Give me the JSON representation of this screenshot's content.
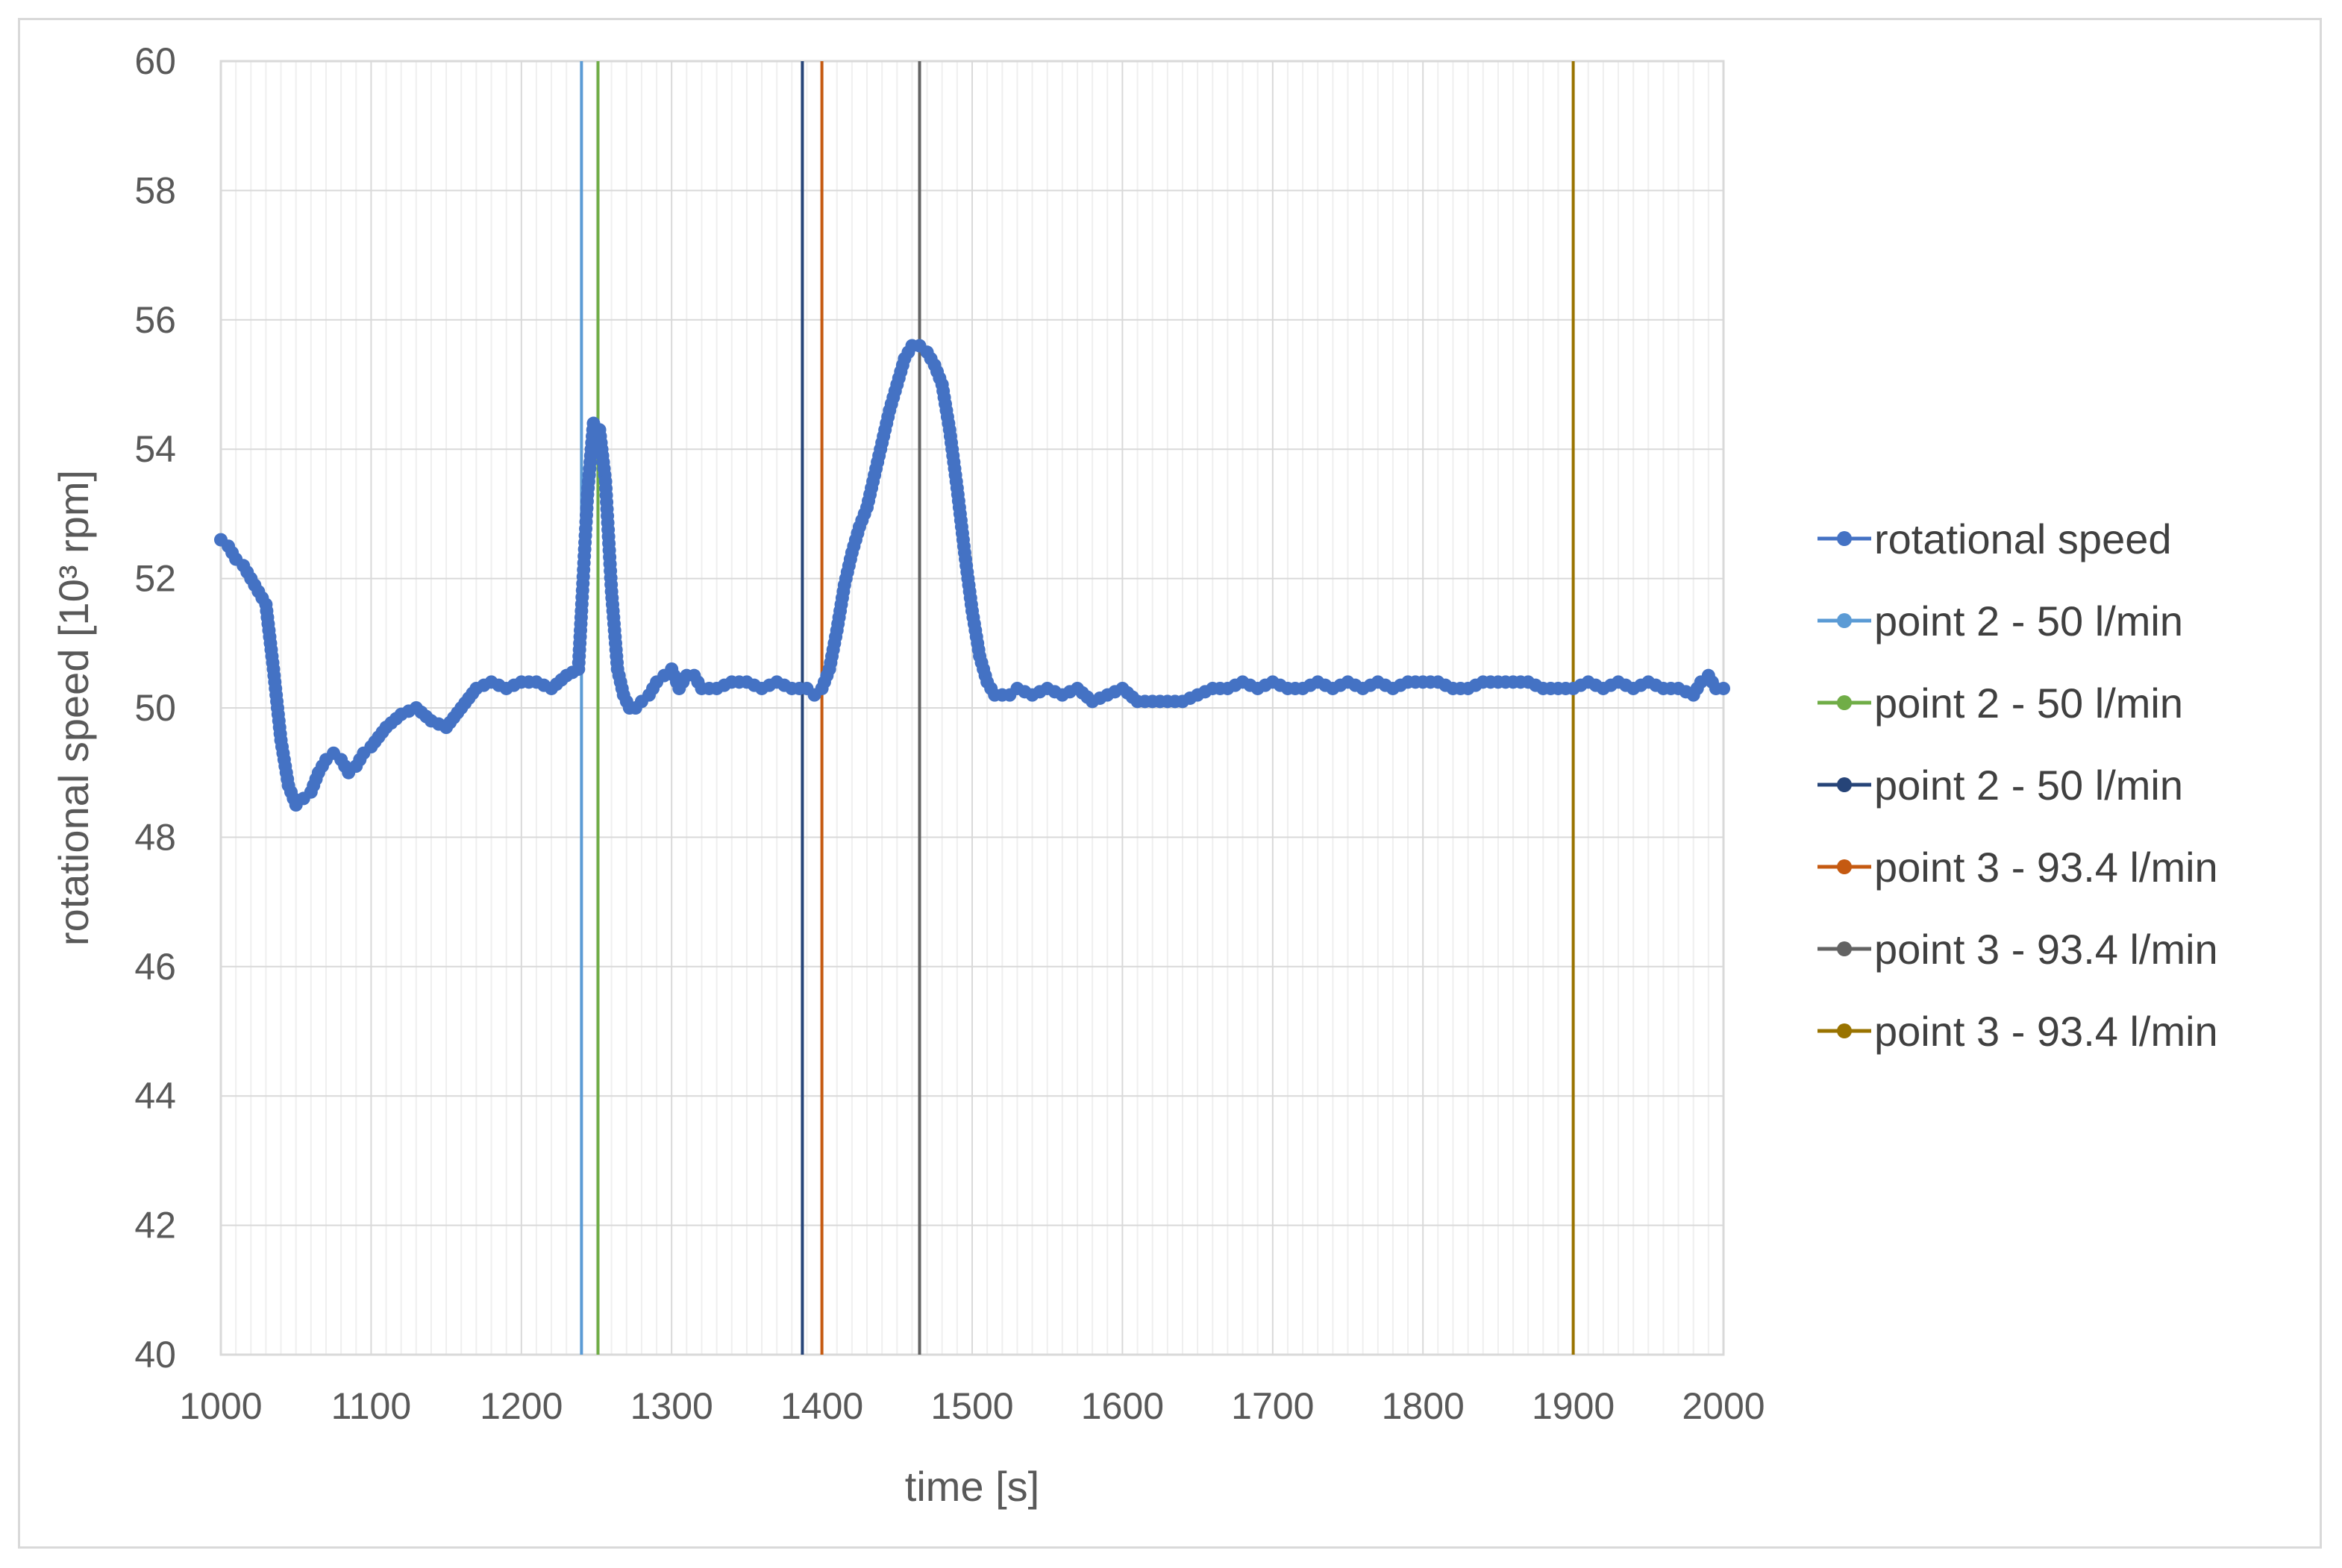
{
  "chart_data": {
    "type": "line",
    "title": "",
    "xlabel": "time [s]",
    "ylabel": "rotational speed [10³ rpm]",
    "xlim": [
      1000,
      2000
    ],
    "ylim": [
      40,
      60
    ],
    "x_ticks": [
      1000,
      1100,
      1200,
      1300,
      1400,
      1500,
      1600,
      1700,
      1800,
      1900,
      2000
    ],
    "y_ticks": [
      40,
      42,
      44,
      46,
      48,
      50,
      52,
      54,
      56,
      58,
      60
    ],
    "grid": true,
    "legend_position": "right",
    "series": [
      {
        "name": "rotational speed",
        "color": "#4472c4",
        "marker": "circle",
        "x": [
          1000,
          1005,
          1010,
          1015,
          1020,
          1025,
          1030,
          1035,
          1040,
          1045,
          1050,
          1055,
          1060,
          1065,
          1070,
          1075,
          1080,
          1085,
          1090,
          1095,
          1100,
          1110,
          1120,
          1130,
          1140,
          1150,
          1160,
          1170,
          1180,
          1190,
          1200,
          1210,
          1220,
          1230,
          1238,
          1240,
          1244,
          1248,
          1252,
          1256,
          1260,
          1264,
          1268,
          1272,
          1276,
          1280,
          1285,
          1290,
          1295,
          1300,
          1305,
          1310,
          1315,
          1320,
          1330,
          1340,
          1350,
          1360,
          1370,
          1380,
          1390,
          1395,
          1400,
          1405,
          1410,
          1415,
          1420,
          1425,
          1430,
          1435,
          1440,
          1445,
          1450,
          1455,
          1460,
          1465,
          1470,
          1475,
          1480,
          1485,
          1490,
          1495,
          1500,
          1505,
          1510,
          1515,
          1520,
          1525,
          1530,
          1540,
          1550,
          1560,
          1570,
          1580,
          1590,
          1600,
          1610,
          1620,
          1630,
          1640,
          1650,
          1660,
          1670,
          1680,
          1690,
          1700,
          1710,
          1720,
          1730,
          1740,
          1750,
          1760,
          1770,
          1780,
          1790,
          1800,
          1810,
          1820,
          1830,
          1840,
          1850,
          1860,
          1870,
          1880,
          1890,
          1900,
          1910,
          1920,
          1930,
          1940,
          1950,
          1960,
          1970,
          1980,
          1985,
          1990,
          1995,
          2000
        ],
        "y": [
          52.6,
          52.5,
          52.3,
          52.2,
          52.0,
          51.8,
          51.6,
          50.6,
          49.5,
          48.8,
          48.5,
          48.6,
          48.7,
          49.0,
          49.2,
          49.3,
          49.2,
          49.0,
          49.1,
          49.3,
          49.4,
          49.7,
          49.9,
          50.0,
          49.8,
          49.7,
          50.0,
          50.3,
          50.4,
          50.3,
          50.4,
          50.4,
          50.3,
          50.5,
          50.6,
          51.5,
          53.3,
          54.4,
          54.3,
          53.5,
          51.8,
          50.6,
          50.2,
          50.0,
          50.0,
          50.1,
          50.2,
          50.4,
          50.5,
          50.6,
          50.3,
          50.5,
          50.5,
          50.3,
          50.3,
          50.4,
          50.4,
          50.3,
          50.4,
          50.3,
          50.3,
          50.2,
          50.3,
          50.6,
          51.2,
          51.9,
          52.4,
          52.8,
          53.1,
          53.6,
          54.1,
          54.6,
          55.0,
          55.4,
          55.6,
          55.6,
          55.5,
          55.3,
          55.0,
          54.3,
          53.4,
          52.4,
          51.5,
          50.8,
          50.4,
          50.2,
          50.2,
          50.2,
          50.3,
          50.2,
          50.3,
          50.2,
          50.3,
          50.1,
          50.2,
          50.3,
          50.1,
          50.1,
          50.1,
          50.1,
          50.2,
          50.3,
          50.3,
          50.4,
          50.3,
          50.4,
          50.3,
          50.3,
          50.4,
          50.3,
          50.4,
          50.3,
          50.4,
          50.3,
          50.4,
          50.4,
          50.4,
          50.3,
          50.3,
          50.4,
          50.4,
          50.4,
          50.4,
          50.3,
          50.3,
          50.3,
          50.4,
          50.3,
          50.4,
          50.3,
          50.4,
          50.3,
          50.3,
          50.2,
          50.4,
          50.5,
          50.3,
          50.3
        ]
      },
      {
        "name": "point 2 - 50 l/min",
        "color": "#5b9bd5",
        "x": [
          1240,
          1240
        ],
        "y": [
          40,
          60
        ]
      },
      {
        "name": "point 2 - 50 l/min",
        "color": "#70ad47",
        "x": [
          1251,
          1251
        ],
        "y": [
          40,
          60
        ]
      },
      {
        "name": "point 2 - 50 l/min",
        "color": "#264478",
        "x": [
          1387,
          1387
        ],
        "y": [
          40,
          60
        ]
      },
      {
        "name": "point 3 - 93.4 l/min",
        "color": "#c55a11",
        "x": [
          1400,
          1400
        ],
        "y": [
          40,
          60
        ]
      },
      {
        "name": "point 3 - 93.4 l/min",
        "color": "#636363",
        "x": [
          1465,
          1465
        ],
        "y": [
          40,
          60
        ]
      },
      {
        "name": "point 3 - 93.4 l/min",
        "color": "#997300",
        "x": [
          1900,
          1900
        ],
        "y": [
          40,
          60
        ]
      }
    ]
  }
}
